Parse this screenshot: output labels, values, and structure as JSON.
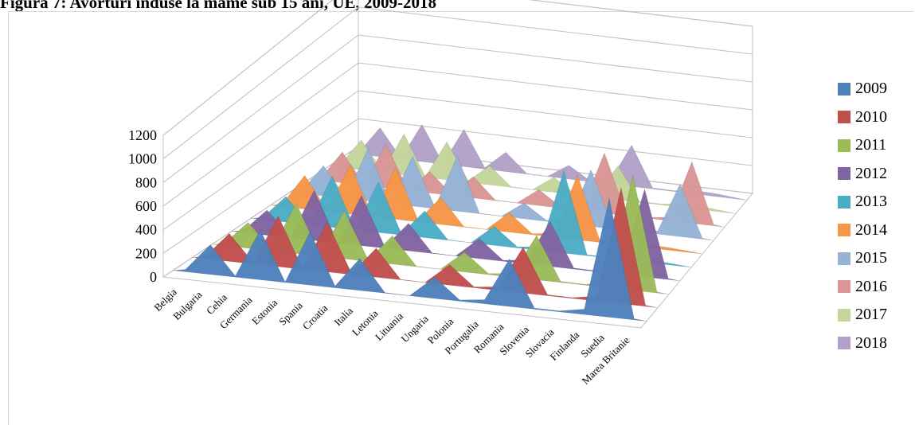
{
  "title": "Figura 7: Avorturi induse la mame sub 15 ani, UE, 2009-2018",
  "chart_data": {
    "type": "area",
    "subtype": "3d-area",
    "title": "Figura 7: Avorturi induse la mame sub 15 ani, UE, 2009-2018",
    "categories": [
      "Belgia",
      "Bulgaria",
      "Cehia",
      "Germania",
      "Estonia",
      "Spania",
      "Croatia",
      "Italia",
      "Letonia",
      "Lituania",
      "Ungaria",
      "Polonia",
      "Portugalia",
      "Romania",
      "Slovenia",
      "Slovacia",
      "Finlanda",
      "Suedia",
      "Marea Britanie"
    ],
    "ylim": [
      0,
      1200
    ],
    "yticks": [
      0,
      200,
      400,
      600,
      800,
      1000,
      1200
    ],
    "gridlines": true,
    "legend_position": "right",
    "series": [
      {
        "name": "2009",
        "color": "#4F81BD",
        "values": [
          20,
          250,
          10,
          420,
          5,
          450,
          15,
          270,
          5,
          2,
          180,
          10,
          35,
          400,
          10,
          8,
          45,
          1000,
          10
        ]
      },
      {
        "name": "2010",
        "color": "#C0504D",
        "values": [
          15,
          230,
          8,
          420,
          5,
          410,
          10,
          240,
          4,
          2,
          170,
          8,
          30,
          380,
          9,
          7,
          40,
          960,
          9
        ]
      },
      {
        "name": "2011",
        "color": "#9BBB59",
        "values": [
          15,
          210,
          8,
          410,
          4,
          390,
          10,
          230,
          4,
          2,
          160,
          8,
          30,
          360,
          9,
          6,
          40,
          940,
          9
        ]
      },
      {
        "name": "2012",
        "color": "#8064A2",
        "values": [
          15,
          200,
          8,
          400,
          4,
          400,
          10,
          220,
          4,
          2,
          160,
          8,
          30,
          360,
          9,
          6,
          40,
          700,
          8
        ]
      },
      {
        "name": "2013",
        "color": "#4BACC6",
        "values": [
          15,
          200,
          8,
          400,
          4,
          400,
          10,
          210,
          4,
          2,
          150,
          8,
          30,
          650,
          8,
          6,
          30,
          20,
          8
        ]
      },
      {
        "name": "2014",
        "color": "#F79646",
        "values": [
          15,
          260,
          8,
          380,
          4,
          400,
          10,
          210,
          4,
          2,
          150,
          8,
          30,
          500,
          8,
          6,
          25,
          20,
          8
        ]
      },
      {
        "name": "2015",
        "color": "#95B3D7",
        "values": [
          15,
          230,
          8,
          400,
          4,
          380,
          10,
          420,
          4,
          2,
          120,
          8,
          30,
          430,
          8,
          6,
          25,
          400,
          8
        ]
      },
      {
        "name": "2016",
        "color": "#D99694",
        "values": [
          15,
          230,
          8,
          330,
          4,
          160,
          10,
          160,
          4,
          2,
          120,
          8,
          30,
          450,
          8,
          6,
          25,
          460,
          8
        ]
      },
      {
        "name": "2017",
        "color": "#C3D69B",
        "values": [
          15,
          220,
          8,
          300,
          4,
          280,
          10,
          140,
          4,
          2,
          110,
          8,
          30,
          250,
          8,
          6,
          25,
          20,
          7
        ]
      },
      {
        "name": "2018",
        "color": "#B2A1C7",
        "values": [
          15,
          210,
          8,
          270,
          4,
          270,
          10,
          140,
          4,
          2,
          100,
          8,
          30,
          300,
          8,
          6,
          25,
          20,
          7
        ]
      }
    ]
  }
}
